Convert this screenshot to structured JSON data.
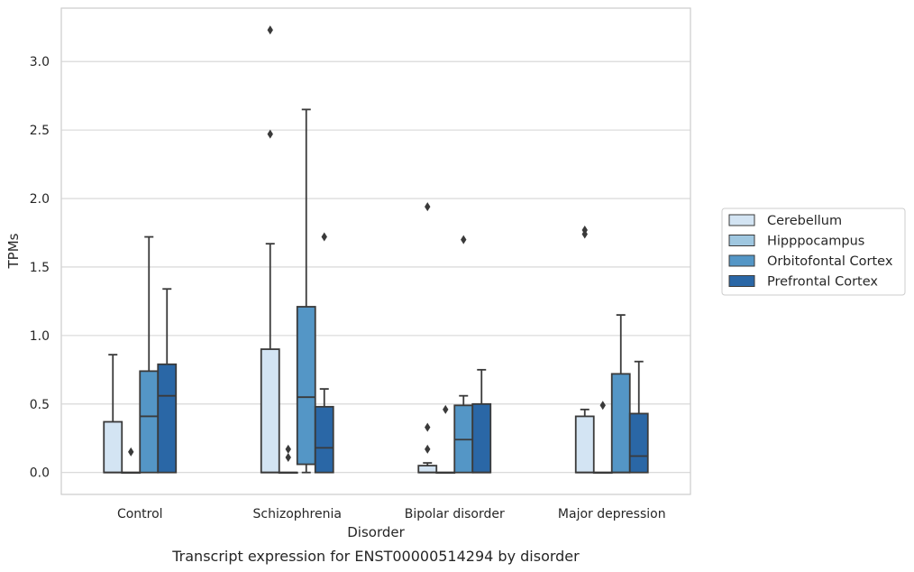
{
  "caption": "Transcript expression for ENST00000514294 by disorder",
  "chart_data": {
    "type": "box",
    "title": "",
    "xlabel": "Disorder",
    "ylabel": "TPMs",
    "ylim": [
      -0.16,
      3.39
    ],
    "yticks": [
      "0.0",
      "0.5",
      "1.0",
      "1.5",
      "2.0",
      "2.5",
      "3.0"
    ],
    "grid": "horizontal",
    "legend_position": "right",
    "categories": [
      "Control",
      "Schizophrenia",
      "Bipolar disorder",
      "Major depression"
    ],
    "series": [
      {
        "name": "Cerebellum",
        "color": "#d3e4f3",
        "boxes": [
          {
            "q1": 0.0,
            "median": 0.0,
            "q3": 0.37,
            "whisker_low": 0.0,
            "whisker_high": 0.86,
            "outliers": []
          },
          {
            "q1": 0.0,
            "median": 0.0,
            "q3": 0.9,
            "whisker_low": 0.0,
            "whisker_high": 1.67,
            "outliers": [
              2.47,
              3.23
            ]
          },
          {
            "q1": 0.0,
            "median": 0.0,
            "q3": 0.05,
            "whisker_low": 0.0,
            "whisker_high": 0.07,
            "outliers": [
              0.17,
              0.33,
              1.94
            ]
          },
          {
            "q1": 0.0,
            "median": 0.0,
            "q3": 0.41,
            "whisker_low": 0.0,
            "whisker_high": 0.46,
            "outliers": [
              1.74,
              1.77
            ]
          }
        ]
      },
      {
        "name": "Hipppocampus",
        "color": "#9fc7e0",
        "boxes": [
          {
            "q1": 0.0,
            "median": 0.0,
            "q3": 0.0,
            "whisker_low": 0.0,
            "whisker_high": 0.0,
            "outliers": [
              0.15
            ]
          },
          {
            "q1": 0.0,
            "median": 0.0,
            "q3": 0.0,
            "whisker_low": 0.0,
            "whisker_high": 0.0,
            "outliers": [
              0.11,
              0.17
            ]
          },
          {
            "q1": 0.0,
            "median": 0.0,
            "q3": 0.0,
            "whisker_low": 0.0,
            "whisker_high": 0.0,
            "outliers": [
              0.46
            ]
          },
          {
            "q1": 0.0,
            "median": 0.0,
            "q3": 0.0,
            "whisker_low": 0.0,
            "whisker_high": 0.0,
            "outliers": [
              0.49
            ]
          }
        ]
      },
      {
        "name": "Orbitofontal Cortex",
        "color": "#5496c6",
        "boxes": [
          {
            "q1": 0.0,
            "median": 0.41,
            "q3": 0.74,
            "whisker_low": 0.0,
            "whisker_high": 1.72,
            "outliers": []
          },
          {
            "q1": 0.06,
            "median": 0.55,
            "q3": 1.21,
            "whisker_low": 0.0,
            "whisker_high": 2.65,
            "outliers": []
          },
          {
            "q1": 0.0,
            "median": 0.24,
            "q3": 0.49,
            "whisker_low": 0.0,
            "whisker_high": 0.56,
            "outliers": [
              1.7
            ]
          },
          {
            "q1": 0.0,
            "median": 0.0,
            "q3": 0.72,
            "whisker_low": 0.0,
            "whisker_high": 1.15,
            "outliers": []
          }
        ]
      },
      {
        "name": "Prefrontal Cortex",
        "color": "#2a67a6",
        "boxes": [
          {
            "q1": 0.0,
            "median": 0.56,
            "q3": 0.79,
            "whisker_low": 0.0,
            "whisker_high": 1.34,
            "outliers": []
          },
          {
            "q1": 0.0,
            "median": 0.18,
            "q3": 0.48,
            "whisker_low": 0.0,
            "whisker_high": 0.61,
            "outliers": [
              1.72
            ]
          },
          {
            "q1": 0.0,
            "median": 0.0,
            "q3": 0.5,
            "whisker_low": 0.0,
            "whisker_high": 0.75,
            "outliers": []
          },
          {
            "q1": 0.0,
            "median": 0.12,
            "q3": 0.43,
            "whisker_low": 0.0,
            "whisker_high": 0.81,
            "outliers": []
          }
        ]
      }
    ]
  }
}
